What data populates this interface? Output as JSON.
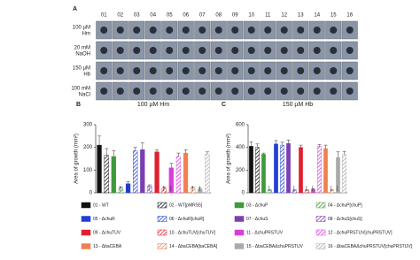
{
  "panel_a": {
    "label": "A",
    "columns": [
      "01",
      "02",
      "03",
      "04",
      "05",
      "06",
      "07",
      "08",
      "09",
      "10",
      "11",
      "12",
      "13",
      "14",
      "15",
      "16"
    ],
    "rows": [
      "100 µM Hm",
      "20 mM NaOH",
      "150 µM Hb",
      "100 mM NaCl"
    ]
  },
  "legend": [
    {
      "label": "01 - WT",
      "color": "#111111",
      "hatch": false
    },
    {
      "label": "02 - WT[pMRS5]",
      "color": "#111111",
      "hatch": true
    },
    {
      "label": "03 - ΔchuP",
      "color": "#3f9a3a",
      "hatch": false
    },
    {
      "label": "04 - ΔchuP[chuP]",
      "color": "#3f9a3a",
      "hatch": true
    },
    {
      "label": "05 - ΔchuR",
      "color": "#1f3fd6",
      "hatch": false
    },
    {
      "label": "06 - ΔchuR[chuR]",
      "color": "#1f3fd6",
      "hatch": true
    },
    {
      "label": "07 - ΔchuS",
      "color": "#7a3fb0",
      "hatch": false
    },
    {
      "label": "08 - ΔchuS[chuS]",
      "color": "#7a3fb0",
      "hatch": true
    },
    {
      "label": "09 - ΔchuTUV",
      "color": "#e02030",
      "hatch": false
    },
    {
      "label": "10 - ΔchuTUV[chuTUV]",
      "color": "#e02030",
      "hatch": true
    },
    {
      "label": "11 - ΔchuPRSTUV",
      "color": "#d83fd8",
      "hatch": false
    },
    {
      "label": "12 - ΔchuPRSTUV[chuPRSTUV]",
      "color": "#d83fd8",
      "hatch": true
    },
    {
      "label": "13 - ΔbaCEBA",
      "color": "#f08050",
      "hatch": false
    },
    {
      "label": "14 - ΔbaCEBA[baCEBA]",
      "color": "#f08050",
      "hatch": true
    },
    {
      "label": "15 - ΔbaCEBAΔchuPRSTUV",
      "color": "#aaaaaa",
      "hatch": false
    },
    {
      "label": "16 - ΔbaCEBAΔchuPRSTUV[chuPRSTUV]",
      "color": "#aaaaaa",
      "hatch": true
    }
  ],
  "chart_data": [
    {
      "type": "bar",
      "panel": "B",
      "title": "100 µM Hm",
      "ylabel": "Area of growth (mm²)",
      "values": [
        210,
        165,
        160,
        20,
        40,
        185,
        190,
        30,
        180,
        20,
        110,
        160,
        175,
        20,
        15,
        170
      ],
      "errors": [
        40,
        30,
        25,
        5,
        10,
        15,
        30,
        5,
        10,
        5,
        20,
        15,
        15,
        5,
        5,
        10
      ],
      "significance": [
        null,
        null,
        null,
        "****",
        "****",
        null,
        null,
        "****",
        null,
        "****",
        "****",
        null,
        null,
        "****",
        "****",
        null
      ],
      "ylim": [
        0,
        300
      ],
      "yticks": [
        0,
        100,
        200,
        300
      ]
    },
    {
      "type": "bar",
      "panel": "C",
      "title": "150 µM Hb",
      "ylabel": "Area of growth (mm²)",
      "values": [
        410,
        400,
        340,
        20,
        430,
        420,
        435,
        20,
        400,
        20,
        30,
        410,
        390,
        20,
        310,
        340
      ],
      "errors": [
        40,
        30,
        10,
        5,
        30,
        25,
        30,
        5,
        20,
        5,
        5,
        15,
        30,
        5,
        50,
        25
      ],
      "significance": [
        null,
        null,
        null,
        "****",
        null,
        null,
        null,
        "****",
        null,
        "****",
        "****",
        null,
        null,
        "****",
        "****",
        null
      ],
      "ylim": [
        0,
        600
      ],
      "yticks": [
        0,
        200,
        400,
        600
      ]
    }
  ]
}
